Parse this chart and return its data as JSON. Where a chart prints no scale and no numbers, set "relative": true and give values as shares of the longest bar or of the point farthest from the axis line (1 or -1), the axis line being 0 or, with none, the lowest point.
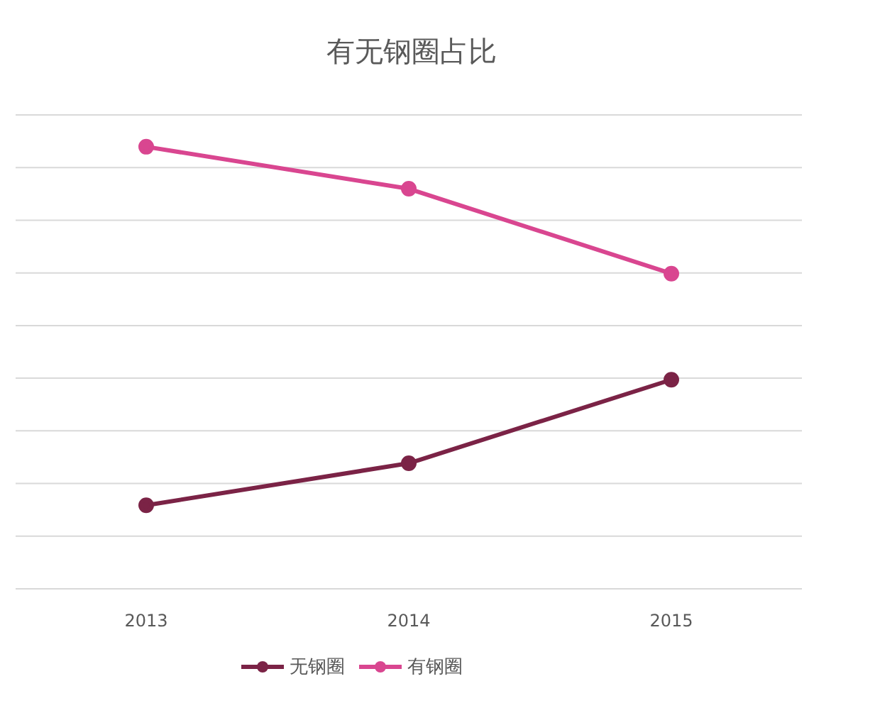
{
  "chart_data": {
    "type": "line",
    "title": "有无钢圈占比",
    "categories": [
      "2013",
      "2014",
      "2015"
    ],
    "relative": true,
    "grid": "y",
    "legend": "bottom",
    "marker": "circle",
    "series": [
      {
        "name": "无钢圈",
        "color": "#7b2346",
        "values": [
          0.189,
          0.284,
          0.473
        ]
      },
      {
        "name": "有钢圈",
        "color": "#d94690",
        "values": [
          1,
          0.905,
          0.713
        ]
      }
    ]
  }
}
